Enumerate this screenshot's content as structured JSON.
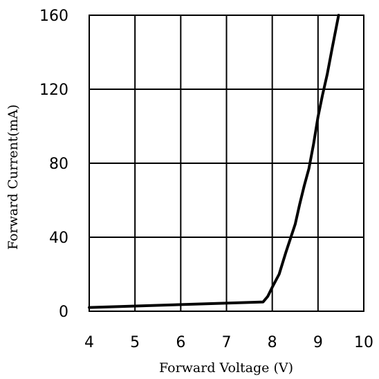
{
  "chart_data": {
    "type": "line",
    "xlabel": "Forward Voltage  (V)",
    "ylabel": "Forward Current(mA)",
    "xlim": [
      4,
      10
    ],
    "ylim": [
      0,
      160
    ],
    "x_ticks": [
      4,
      5,
      6,
      7,
      8,
      9,
      10
    ],
    "y_ticks": [
      0,
      40,
      80,
      120,
      160
    ],
    "grid": true,
    "series": [
      {
        "color": "#000000",
        "points": [
          [
            4.0,
            2
          ],
          [
            7.8,
            5
          ],
          [
            7.9,
            8
          ],
          [
            8.0,
            13
          ],
          [
            8.15,
            20
          ],
          [
            8.3,
            32
          ],
          [
            8.5,
            47
          ],
          [
            8.6,
            58
          ],
          [
            8.7,
            68
          ],
          [
            8.8,
            77
          ],
          [
            8.9,
            90
          ],
          [
            9.0,
            105
          ],
          [
            9.1,
            117
          ],
          [
            9.2,
            128
          ],
          [
            9.3,
            141
          ],
          [
            9.45,
            160
          ]
        ]
      }
    ]
  }
}
